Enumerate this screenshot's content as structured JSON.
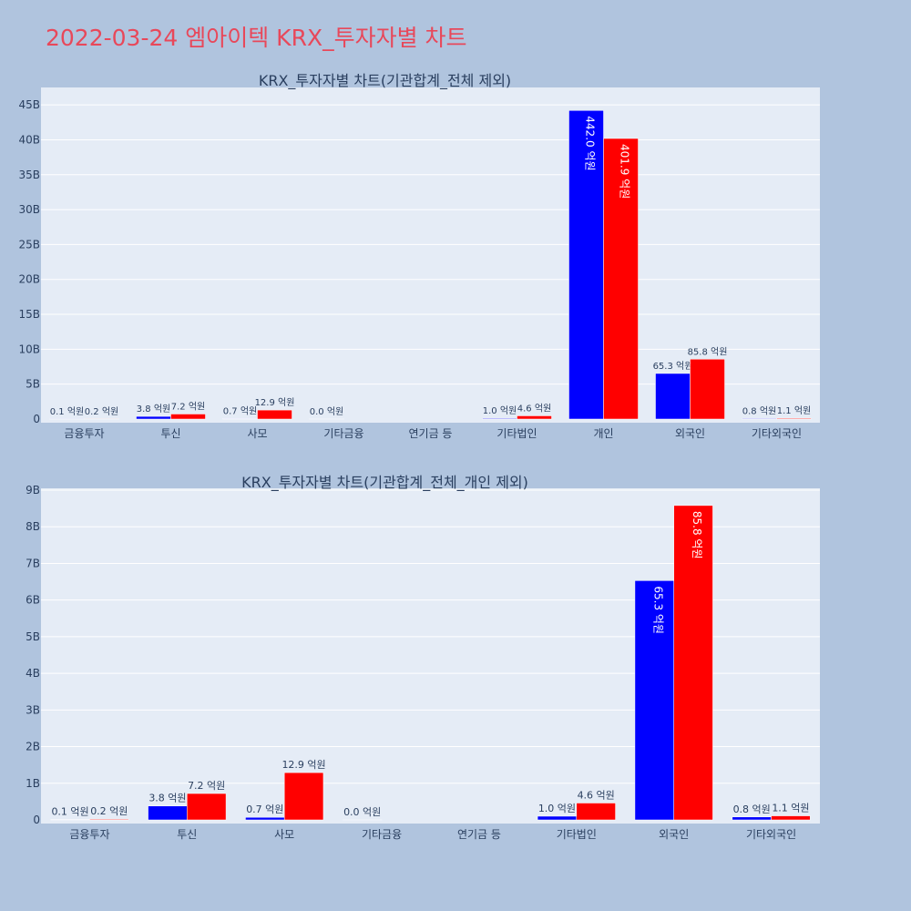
{
  "page": {
    "title": "2022-03-24 엠아이텍 KRX_투자자별 차트"
  },
  "colors": {
    "series1": "#0000ff",
    "series2": "#ff0000",
    "plot_bg": "#e5ecf6",
    "paper_bg": "#b0c4de",
    "grid": "#ffffff",
    "title": "#e8485a",
    "text": "#2a3f5f"
  },
  "chart_data": [
    {
      "type": "bar",
      "title": "KRX_투자자별 차트(기관합계_전체 제외)",
      "categories": [
        "금융투자",
        "투신",
        "사모",
        "기타금융",
        "연기금 등",
        "기타법인",
        "개인",
        "외국인",
        "기타외국인"
      ],
      "ylim": [
        0,
        47.5
      ],
      "yticks": [
        0,
        5,
        10,
        15,
        20,
        25,
        30,
        35,
        40,
        45
      ],
      "ytick_labels": [
        "0",
        "5B",
        "10B",
        "15B",
        "20B",
        "25B",
        "30B",
        "35B",
        "40B",
        "45B"
      ],
      "grid": true,
      "series": [
        {
          "color": "#0000ff",
          "values": [
            0.01,
            0.38,
            0.07,
            0.0,
            null,
            0.1,
            44.2,
            6.53,
            0.08
          ],
          "labels": [
            "0.1 억원",
            "3.8 억원",
            "0.7 억원",
            "0.0 억원",
            "",
            "1.0 억원",
            "442.0 억원",
            "65.3 억원",
            "0.8 억원"
          ]
        },
        {
          "color": "#ff0000",
          "values": [
            0.02,
            0.72,
            1.29,
            null,
            null,
            0.46,
            40.19,
            8.58,
            0.11
          ],
          "labels": [
            "0.2 억원",
            "7.2 억원",
            "12.9 억원",
            "",
            "",
            "4.6 억원",
            "401.9 억원",
            "85.8 억원",
            "1.1 억원"
          ]
        }
      ]
    },
    {
      "type": "bar",
      "title": "KRX_투자자별 차트(기관합계_전체_개인 제외)",
      "categories": [
        "금융투자",
        "투신",
        "사모",
        "기타금융",
        "연기금 등",
        "기타법인",
        "외국인",
        "기타외국인"
      ],
      "ylim": [
        0,
        9.05
      ],
      "yticks": [
        0,
        1,
        2,
        3,
        4,
        5,
        6,
        7,
        8,
        9
      ],
      "ytick_labels": [
        "0",
        "1B",
        "2B",
        "3B",
        "4B",
        "5B",
        "6B",
        "7B",
        "8B",
        "9B"
      ],
      "grid": true,
      "series": [
        {
          "color": "#0000ff",
          "values": [
            0.01,
            0.38,
            0.07,
            0.0,
            null,
            0.1,
            6.53,
            0.08
          ],
          "labels": [
            "0.1 억원",
            "3.8 억원",
            "0.7 억원",
            "0.0 억원",
            "",
            "1.0 억원",
            "65.3 억원",
            "0.8 억원"
          ]
        },
        {
          "color": "#ff0000",
          "values": [
            0.02,
            0.72,
            1.29,
            null,
            null,
            0.46,
            8.58,
            0.11
          ],
          "labels": [
            "0.2 억원",
            "7.2 억원",
            "12.9 억원",
            "",
            "",
            "4.6 억원",
            "85.8 억원",
            "1.1 억원"
          ]
        }
      ]
    }
  ]
}
